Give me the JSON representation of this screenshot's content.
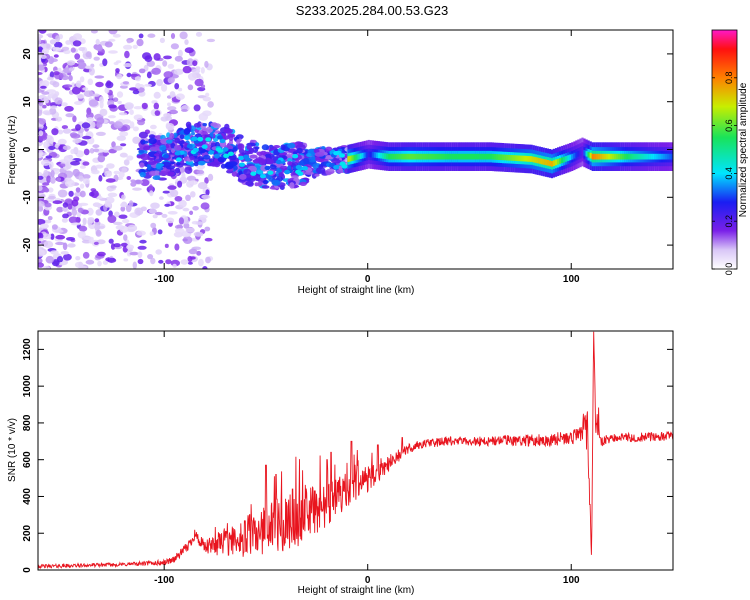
{
  "figure_title": "S233.2025.284.00.53.G23",
  "chart_data": [
    {
      "type": "heatmap",
      "title": "S233.2025.284.00.53.G23",
      "xlabel": "Height of straight line (km)",
      "ylabel": "Frequency (Hz)",
      "xlim": [
        -162,
        150
      ],
      "ylim": [
        -25,
        25
      ],
      "xticks": [
        -100,
        0,
        100
      ],
      "yticks": [
        -20,
        -10,
        0,
        10,
        20
      ],
      "colorbar": {
        "label": "Normalized spectral amplitude",
        "range": [
          0,
          1
        ],
        "ticks": [
          0.0,
          0.2,
          0.4,
          0.6,
          0.8
        ]
      },
      "ridge": {
        "description": "dominant frequency track vs height",
        "x": [
          -110,
          -100,
          -90,
          -80,
          -70,
          -60,
          -50,
          -40,
          -30,
          -20,
          -10,
          0,
          10,
          20,
          40,
          60,
          80,
          90,
          100,
          105,
          110,
          130,
          150
        ],
        "frequency": [
          -1.0,
          -2.0,
          0.5,
          1.5,
          0.5,
          -2.5,
          -4.0,
          -3.5,
          -3.0,
          -2.5,
          -2.0,
          -1.0,
          -1.5,
          -1.5,
          -1.5,
          -1.5,
          -2.0,
          -3.0,
          -1.5,
          -0.5,
          -1.5,
          -1.5,
          -1.5
        ],
        "amplitude": [
          0.15,
          0.2,
          0.25,
          0.25,
          0.2,
          0.15,
          0.12,
          0.12,
          0.12,
          0.15,
          0.7,
          0.25,
          0.55,
          0.6,
          0.55,
          0.55,
          0.7,
          0.75,
          0.35,
          0.2,
          0.8,
          0.5,
          0.3
        ]
      }
    },
    {
      "type": "line",
      "xlabel": "Height of straight line (km)",
      "ylabel": "SNR (10 * v/v)",
      "xlim": [
        -162,
        150
      ],
      "ylim": [
        0,
        1300
      ],
      "xticks": [
        -100,
        0,
        100
      ],
      "yticks": [
        0,
        200,
        400,
        600,
        800,
        1000,
        1200
      ],
      "color": "#e8141e",
      "series": [
        {
          "name": "SNR",
          "x": [
            -162,
            -150,
            -140,
            -130,
            -120,
            -110,
            -100,
            -95,
            -90,
            -87,
            -85,
            -83,
            -80,
            -70,
            -60,
            -50,
            -40,
            -30,
            -25,
            -20,
            -15,
            -10,
            -5,
            0,
            5,
            10,
            15,
            20,
            25,
            30,
            40,
            50,
            60,
            70,
            80,
            90,
            100,
            105,
            108,
            110,
            111,
            112,
            115,
            120,
            130,
            140,
            150
          ],
          "y": [
            20,
            22,
            25,
            28,
            30,
            35,
            40,
            60,
            110,
            150,
            200,
            160,
            120,
            150,
            180,
            220,
            260,
            300,
            330,
            360,
            390,
            430,
            460,
            500,
            540,
            580,
            620,
            660,
            680,
            690,
            700,
            700,
            700,
            705,
            705,
            710,
            720,
            740,
            750,
            60,
            1300,
            800,
            700,
            720,
            720,
            725,
            730
          ],
          "noise_amplitude": [
            10,
            10,
            10,
            10,
            10,
            12,
            15,
            20,
            25,
            30,
            35,
            35,
            40,
            80,
            110,
            140,
            160,
            150,
            140,
            120,
            110,
            100,
            90,
            80,
            60,
            45,
            35,
            28,
            25,
            25,
            25,
            25,
            30,
            30,
            32,
            35,
            38,
            40,
            120,
            10,
            10,
            100,
            30,
            25,
            25,
            25,
            25
          ],
          "spikes": [
            {
              "x": -50,
              "y": 570
            },
            {
              "x": -45,
              "y": 520
            },
            {
              "x": -37,
              "y": 440
            },
            {
              "x": -20,
              "y": 600
            },
            {
              "x": -18,
              "y": 640
            },
            {
              "x": -8,
              "y": 700
            },
            {
              "x": 5,
              "y": 680
            },
            {
              "x": 17,
              "y": 720
            }
          ]
        }
      ]
    }
  ]
}
